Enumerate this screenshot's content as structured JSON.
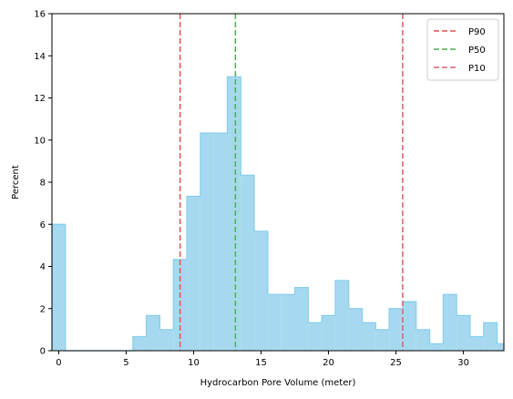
{
  "chart_data": {
    "type": "histogram",
    "xlabel": "Hydrocarbon Pore Volume (meter)",
    "ylabel": "Percent",
    "xlim": [
      -0.5,
      33
    ],
    "ylim": [
      0,
      16
    ],
    "x_ticks": [
      0,
      5,
      10,
      15,
      20,
      25,
      30
    ],
    "y_ticks": [
      0,
      2,
      4,
      6,
      8,
      10,
      12,
      14,
      16
    ],
    "bin_width": 1.0,
    "bar_color": "#a6d9ef",
    "edge_color": "#87ceeb",
    "bins": [
      {
        "x0": -0.5,
        "x1": 0.5,
        "value": 6.0
      },
      {
        "x0": 0.5,
        "x1": 1.5,
        "value": 0
      },
      {
        "x0": 1.5,
        "x1": 2.5,
        "value": 0
      },
      {
        "x0": 2.5,
        "x1": 3.5,
        "value": 0
      },
      {
        "x0": 3.5,
        "x1": 4.5,
        "value": 0
      },
      {
        "x0": 4.5,
        "x1": 5.5,
        "value": 0
      },
      {
        "x0": 5.5,
        "x1": 6.5,
        "value": 0.67
      },
      {
        "x0": 6.5,
        "x1": 7.5,
        "value": 1.67
      },
      {
        "x0": 7.5,
        "x1": 8.5,
        "value": 1.0
      },
      {
        "x0": 8.5,
        "x1": 9.5,
        "value": 4.33
      },
      {
        "x0": 9.5,
        "x1": 10.5,
        "value": 7.33
      },
      {
        "x0": 10.5,
        "x1": 11.5,
        "value": 10.33
      },
      {
        "x0": 11.5,
        "x1": 12.5,
        "value": 10.33
      },
      {
        "x0": 12.5,
        "x1": 13.5,
        "value": 13.0
      },
      {
        "x0": 13.5,
        "x1": 14.5,
        "value": 8.33
      },
      {
        "x0": 14.5,
        "x1": 15.5,
        "value": 5.67
      },
      {
        "x0": 15.5,
        "x1": 16.5,
        "value": 2.67
      },
      {
        "x0": 16.5,
        "x1": 17.5,
        "value": 2.67
      },
      {
        "x0": 17.5,
        "x1": 18.5,
        "value": 3.0
      },
      {
        "x0": 18.5,
        "x1": 19.5,
        "value": 1.33
      },
      {
        "x0": 19.5,
        "x1": 20.5,
        "value": 1.67
      },
      {
        "x0": 20.5,
        "x1": 21.5,
        "value": 3.33
      },
      {
        "x0": 21.5,
        "x1": 22.5,
        "value": 2.0
      },
      {
        "x0": 22.5,
        "x1": 23.5,
        "value": 1.33
      },
      {
        "x0": 23.5,
        "x1": 24.5,
        "value": 1.0
      },
      {
        "x0": 24.5,
        "x1": 25.5,
        "value": 2.0
      },
      {
        "x0": 25.5,
        "x1": 26.5,
        "value": 2.33
      },
      {
        "x0": 26.5,
        "x1": 27.5,
        "value": 1.0
      },
      {
        "x0": 27.5,
        "x1": 28.5,
        "value": 0.33
      },
      {
        "x0": 28.5,
        "x1": 29.5,
        "value": 2.67
      },
      {
        "x0": 29.5,
        "x1": 30.5,
        "value": 1.67
      },
      {
        "x0": 30.5,
        "x1": 31.5,
        "value": 0.67
      },
      {
        "x0": 31.5,
        "x1": 32.5,
        "value": 1.33
      },
      {
        "x0": 32.5,
        "x1": 33.0,
        "value": 0.33
      }
    ],
    "vlines": [
      {
        "name": "P90",
        "x": 9.0,
        "color": "#e8534f"
      },
      {
        "name": "P50",
        "x": 13.1,
        "color": "#4caf50"
      },
      {
        "name": "P10",
        "x": 25.5,
        "color": "#d9606a"
      }
    ],
    "legend": {
      "placement": "top-right",
      "entries": [
        "P90",
        "P50",
        "P10"
      ]
    },
    "grid": false
  }
}
